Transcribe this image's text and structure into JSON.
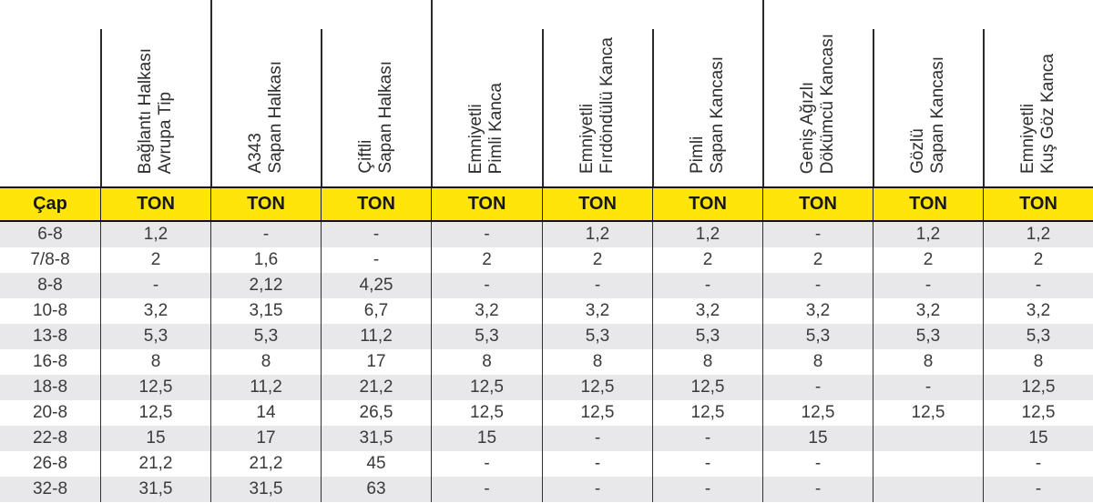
{
  "table": {
    "cap_header": "Çap",
    "ton_header": "TON",
    "columns": [
      {
        "lines": [
          "Bağlantı Halkası",
          "Avrupa Tip"
        ]
      },
      {
        "lines": [
          "A343",
          "Sapan Halkası"
        ]
      },
      {
        "lines": [
          "Çiftli",
          "Sapan Halkası"
        ]
      },
      {
        "lines": [
          "Emniyetli",
          "Pimli Kanca"
        ]
      },
      {
        "lines": [
          "Emniyetli",
          "Fırdöndülü Kanca"
        ]
      },
      {
        "lines": [
          "Pimli",
          "Sapan Kancası"
        ]
      },
      {
        "lines": [
          "Geniş Ağızlı",
          "Dökümcü Kancası"
        ]
      },
      {
        "lines": [
          "Gözlü",
          "Sapan Kancası"
        ]
      },
      {
        "lines": [
          "Emniyetli",
          "Kuş Göz Kanca"
        ]
      }
    ],
    "rows": [
      {
        "cap": "6-8",
        "values": [
          "1,2",
          "-",
          "-",
          "-",
          "1,2",
          "1,2",
          "-",
          "1,2",
          "1,2"
        ]
      },
      {
        "cap": "7/8-8",
        "values": [
          "2",
          "1,6",
          "-",
          "2",
          "2",
          "2",
          "2",
          "2",
          "2"
        ]
      },
      {
        "cap": "8-8",
        "values": [
          "-",
          "2,12",
          "4,25",
          "-",
          "-",
          "-",
          "-",
          "-",
          "-"
        ]
      },
      {
        "cap": "10-8",
        "values": [
          "3,2",
          "3,15",
          "6,7",
          "3,2",
          "3,2",
          "3,2",
          "3,2",
          "3,2",
          "3,2"
        ]
      },
      {
        "cap": "13-8",
        "values": [
          "5,3",
          "5,3",
          "11,2",
          "5,3",
          "5,3",
          "5,3",
          "5,3",
          "5,3",
          "5,3"
        ]
      },
      {
        "cap": "16-8",
        "values": [
          "8",
          "8",
          "17",
          "8",
          "8",
          "8",
          "8",
          "8",
          "8"
        ]
      },
      {
        "cap": "18-8",
        "values": [
          "12,5",
          "11,2",
          "21,2",
          "12,5",
          "12,5",
          "12,5",
          "-",
          "-",
          "12,5"
        ]
      },
      {
        "cap": "20-8",
        "values": [
          "12,5",
          "14",
          "26,5",
          "12,5",
          "12,5",
          "12,5",
          "12,5",
          "12,5",
          "12,5"
        ]
      },
      {
        "cap": "22-8",
        "values": [
          "15",
          "17",
          "31,5",
          "15",
          "-",
          "-",
          "15",
          "",
          "15"
        ]
      },
      {
        "cap": "26-8",
        "values": [
          "21,2",
          "21,2",
          "45",
          "-",
          "-",
          "-",
          "-",
          "",
          "-"
        ]
      },
      {
        "cap": "32-8",
        "values": [
          "31,5",
          "31,5",
          "63",
          "-",
          "-",
          "-",
          "-",
          "",
          "-"
        ]
      }
    ]
  },
  "colors": {
    "header_yellow": "#FFE50A",
    "row_alt_gray": "#E8E8EA",
    "line_black": "#1A1A1A",
    "text_dark": "#3A3A3C"
  }
}
